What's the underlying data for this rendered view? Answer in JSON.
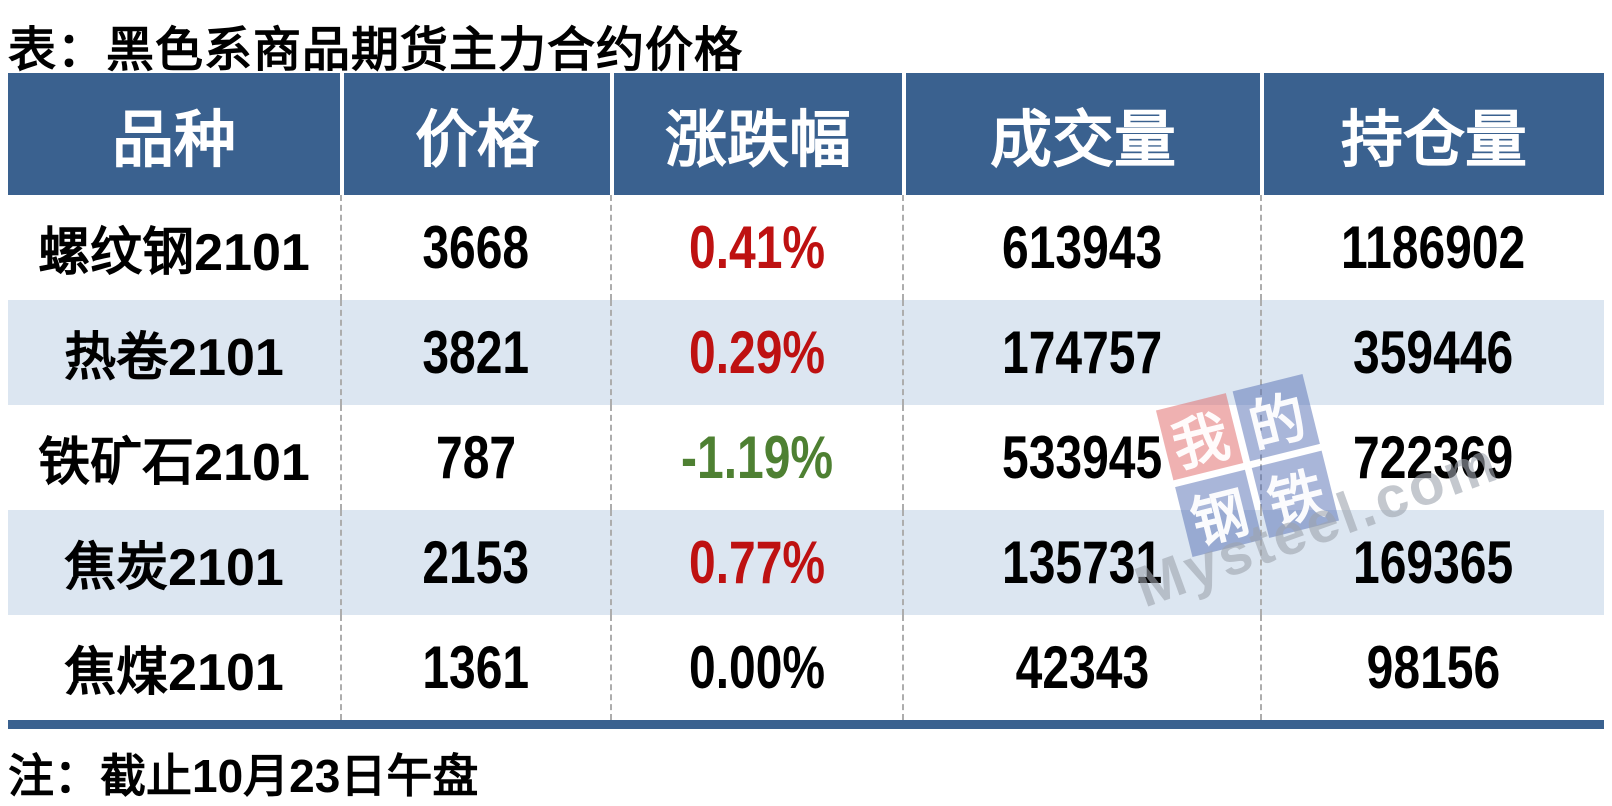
{
  "chart_data": {
    "type": "table",
    "title": "表：黑色系商品期货主力合约价格",
    "note": "注：截止10月23日午盘",
    "columns": [
      "品种",
      "价格",
      "涨跌幅",
      "成交量",
      "持仓量"
    ],
    "rows": [
      {
        "variety": "螺纹钢2101",
        "price": "3668",
        "change": "0.41%",
        "change_color": "#BE1111",
        "volume": "613943",
        "open_interest": "1186902"
      },
      {
        "variety": "热卷2101",
        "price": "3821",
        "change": "0.29%",
        "change_color": "#BE1111",
        "volume": "174757",
        "open_interest": "359446"
      },
      {
        "variety": "铁矿石2101",
        "price": "787",
        "change": "-1.19%",
        "change_color": "#4E8032",
        "volume": "533945",
        "open_interest": "722369"
      },
      {
        "variety": "焦炭2101",
        "price": "2153",
        "change": "0.77%",
        "change_color": "#BE1111",
        "volume": "135731",
        "open_interest": "169365"
      },
      {
        "variety": "焦煤2101",
        "price": "1361",
        "change": "0.00%",
        "change_color": "#000000",
        "volume": "42343",
        "open_interest": "98156"
      }
    ],
    "layout": {
      "grid": "dashed column separators",
      "header_position": "top"
    }
  },
  "colors": {
    "header_bg": "#3A618F",
    "header_text": "#FFFFFF",
    "alt_row_bg": "#DCE6F1",
    "row_bg": "#FFFFFF",
    "up_red": "#BE1111",
    "down_green": "#4E8032",
    "neutral_black": "#000000",
    "bottom_bar": "#3A618F",
    "column_separator": "#ADADAD"
  },
  "watermark": {
    "squares": [
      {
        "char": "我",
        "color": "red"
      },
      {
        "char": "的",
        "color": "blue"
      },
      {
        "char": "钢",
        "color": "blue"
      },
      {
        "char": "铁",
        "color": "blue"
      }
    ],
    "text": "Mysteel.com"
  }
}
